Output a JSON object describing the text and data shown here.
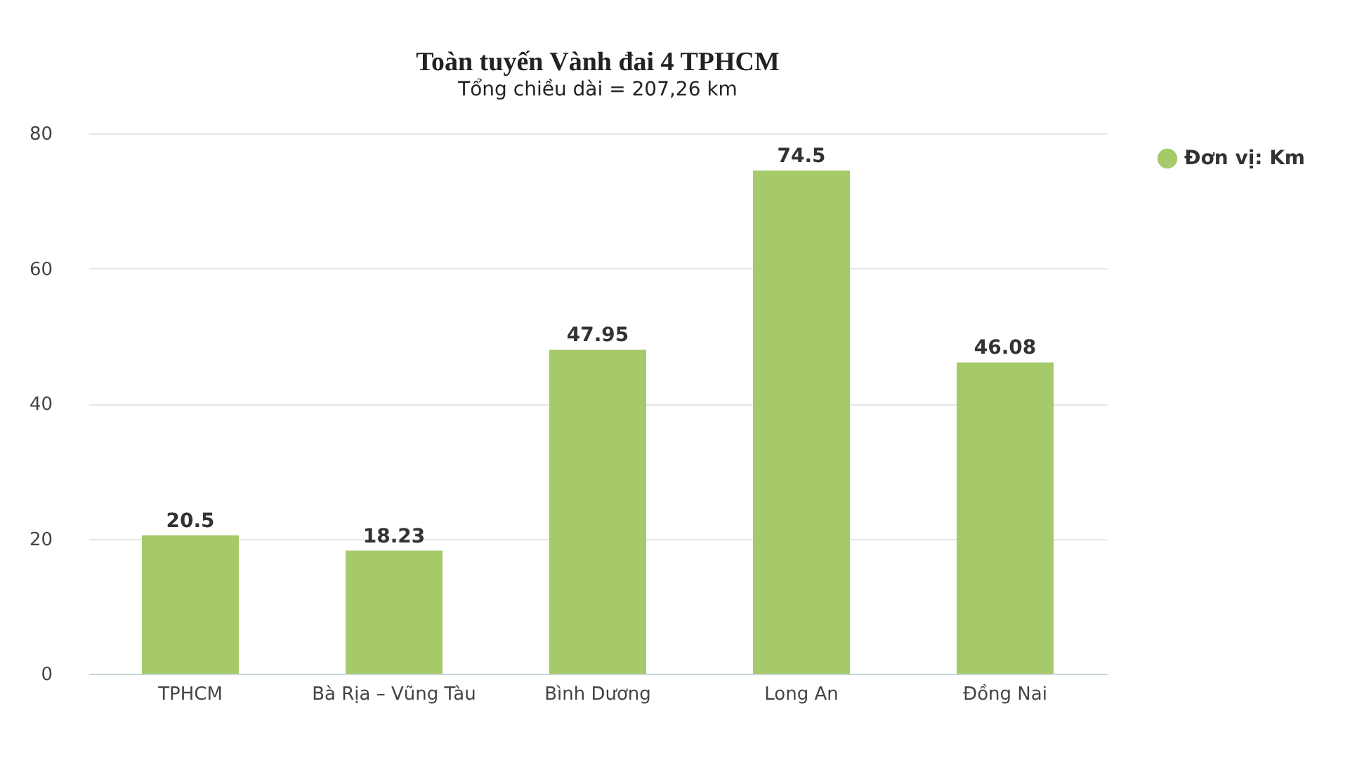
{
  "chart_data": {
    "type": "bar",
    "title": "Toàn tuyến Vành đai 4 TPHCM",
    "subtitle": "Tổng chiều dài = 207,26 km",
    "categories": [
      "TPHCM",
      "Bà Rịa – Vũng Tàu",
      "Bình Dương",
      "Long An",
      "Đồng Nai"
    ],
    "series": [
      {
        "name": "Đơn vị: Km",
        "color": "#a6c96a",
        "values": [
          20.5,
          18.23,
          47.95,
          74.5,
          46.08
        ]
      }
    ],
    "ylim": [
      0,
      80
    ],
    "yticks": [
      0,
      20,
      40,
      60,
      80
    ],
    "grid": "y",
    "legend": "right",
    "data_labels": true
  }
}
